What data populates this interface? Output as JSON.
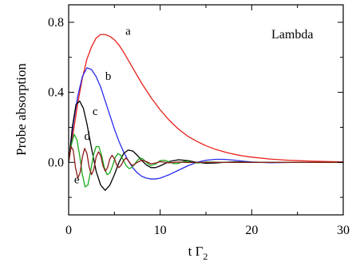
{
  "chart_data": {
    "type": "line",
    "title": "",
    "annotation": "Lambda",
    "xlabel_main": "t Γ",
    "xlabel_sub": "2",
    "ylabel": "Probe absorption",
    "xlim": [
      0,
      30
    ],
    "ylim": [
      -0.3,
      0.9
    ],
    "xticks": [
      0,
      10,
      20,
      30
    ],
    "yticks": [
      0.0,
      0.4,
      0.8
    ],
    "xtick_labels": [
      "0",
      "10",
      "20",
      "30"
    ],
    "ytick_labels": [
      "0.0",
      "0.4",
      "0.8"
    ],
    "grid": false,
    "series": [
      {
        "label": "a",
        "color": "#e8201b",
        "label_pos": [
          6.2,
          0.73
        ],
        "x": [
          0,
          0.5,
          1,
          1.5,
          2,
          2.5,
          3,
          3.5,
          4,
          4.5,
          5,
          5.5,
          6,
          7,
          8,
          9,
          10,
          11,
          12,
          13,
          14,
          15,
          16,
          17,
          18,
          19,
          20,
          22,
          24,
          26,
          28,
          30
        ],
        "y": [
          0,
          0.17,
          0.34,
          0.48,
          0.59,
          0.66,
          0.71,
          0.73,
          0.73,
          0.72,
          0.7,
          0.67,
          0.63,
          0.54,
          0.45,
          0.37,
          0.3,
          0.24,
          0.19,
          0.15,
          0.12,
          0.095,
          0.075,
          0.06,
          0.047,
          0.037,
          0.03,
          0.019,
          0.012,
          0.008,
          0.005,
          0.003
        ]
      },
      {
        "label": "b",
        "color": "#2b2bf0",
        "label_pos": [
          4.0,
          0.47
        ],
        "x": [
          0,
          0.5,
          1,
          1.5,
          2,
          2.5,
          3,
          3.5,
          4,
          4.5,
          5,
          5.5,
          6,
          6.5,
          7,
          7.5,
          8,
          8.5,
          9,
          9.5,
          10,
          11,
          12,
          13,
          14,
          15,
          16,
          17,
          18,
          19,
          20,
          22,
          25,
          30
        ],
        "y": [
          0,
          0.22,
          0.38,
          0.49,
          0.54,
          0.53,
          0.49,
          0.43,
          0.35,
          0.27,
          0.19,
          0.12,
          0.06,
          0.01,
          -0.03,
          -0.06,
          -0.08,
          -0.09,
          -0.095,
          -0.095,
          -0.09,
          -0.07,
          -0.045,
          -0.02,
          0.0,
          0.012,
          0.017,
          0.017,
          0.013,
          0.007,
          0.002,
          -0.002,
          0.0,
          0.0
        ]
      },
      {
        "label": "c",
        "color": "#000000",
        "label_pos": [
          2.6,
          0.27
        ],
        "x": [
          0,
          0.4,
          0.8,
          1.2,
          1.6,
          2.0,
          2.5,
          3.0,
          3.5,
          4.0,
          4.5,
          5.0,
          5.5,
          6.0,
          6.5,
          7.0,
          7.5,
          8.0,
          8.5,
          9.0,
          9.5,
          10.0,
          11,
          12,
          13,
          14,
          15,
          16,
          17,
          18,
          19,
          20,
          22,
          25,
          30
        ],
        "y": [
          0,
          0.2,
          0.33,
          0.35,
          0.31,
          0.22,
          0.08,
          -0.05,
          -0.13,
          -0.16,
          -0.13,
          -0.07,
          0.0,
          0.05,
          0.07,
          0.065,
          0.04,
          0.01,
          -0.015,
          -0.03,
          -0.03,
          -0.02,
          0.005,
          0.015,
          0.01,
          0.0,
          -0.005,
          -0.004,
          0.0,
          0.003,
          0.002,
          0.0,
          0.0,
          0.0,
          0.0
        ]
      },
      {
        "label": "d",
        "color": "#1aa81a",
        "label_pos": [
          1.7,
          0.13
        ],
        "x": [
          0,
          0.3,
          0.6,
          0.9,
          1.2,
          1.5,
          1.8,
          2.1,
          2.4,
          2.7,
          3.0,
          3.3,
          3.6,
          3.9,
          4.2,
          4.5,
          4.8,
          5.1,
          5.4,
          5.7,
          6.0,
          6.3,
          6.6,
          6.9,
          7.2,
          7.5,
          7.8,
          8.1,
          8.4,
          8.7,
          9.0,
          9.5,
          10,
          10.5,
          11,
          11.5,
          12,
          12.5,
          13,
          13.5,
          14,
          14.5,
          15,
          16,
          17,
          18,
          20,
          30
        ],
        "y": [
          0,
          0.1,
          0.16,
          0.13,
          0.04,
          -0.07,
          -0.14,
          -0.13,
          -0.05,
          0.04,
          0.09,
          0.09,
          0.04,
          -0.03,
          -0.07,
          -0.06,
          -0.02,
          0.03,
          0.05,
          0.04,
          0.01,
          -0.02,
          -0.035,
          -0.03,
          -0.01,
          0.01,
          0.025,
          0.02,
          0.005,
          -0.01,
          -0.018,
          -0.01,
          0.01,
          0.012,
          0.002,
          -0.008,
          -0.006,
          0.004,
          0.006,
          0.0,
          -0.004,
          -0.002,
          0.002,
          0.001,
          0.0,
          0.0,
          0.0,
          0.0
        ]
      },
      {
        "label": "e",
        "color": "#8b1a1a",
        "label_pos": [
          0.6,
          -0.12
        ],
        "x": [
          0,
          0.25,
          0.5,
          0.75,
          1.0,
          1.25,
          1.5,
          1.75,
          2.0,
          2.25,
          2.5,
          2.75,
          3.0,
          3.25,
          3.5,
          3.75,
          4.0,
          4.25,
          4.5,
          4.75,
          5.0,
          5.25,
          5.5,
          5.75,
          6.0,
          6.25,
          6.5,
          6.75,
          7.0,
          7.5,
          8.0,
          8.5,
          9.0,
          9.5,
          10,
          11,
          12,
          13,
          14,
          15,
          30
        ],
        "y": [
          0,
          0.09,
          0.07,
          -0.03,
          -0.09,
          -0.06,
          0.03,
          0.08,
          0.05,
          -0.03,
          -0.07,
          -0.04,
          0.03,
          0.06,
          0.04,
          -0.02,
          -0.05,
          -0.03,
          0.02,
          0.04,
          0.02,
          -0.015,
          -0.03,
          -0.015,
          0.01,
          0.025,
          0.012,
          -0.008,
          -0.018,
          0.0,
          0.012,
          0.004,
          -0.008,
          -0.004,
          0.004,
          -0.003,
          0.002,
          -0.001,
          0.0,
          0.0,
          0.0
        ]
      }
    ]
  }
}
